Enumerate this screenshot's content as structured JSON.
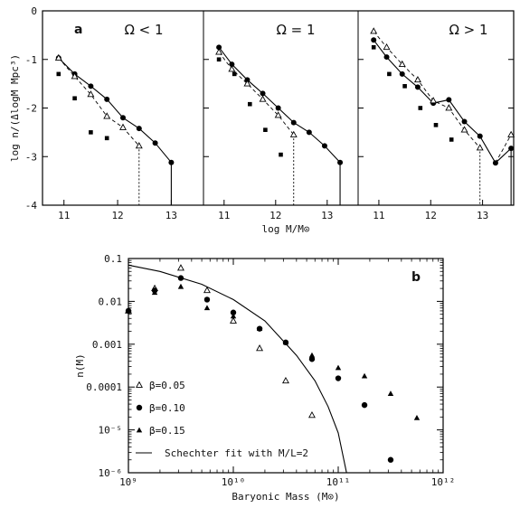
{
  "chart_data": [
    {
      "type": "line",
      "panel_letter": "a",
      "ylabel": "log n/(ΔlogM Mpc³)",
      "xlabel": "log M/M⊙",
      "ylim": [
        -4,
        0
      ],
      "y_ticks": [
        "0",
        "-1",
        "-2",
        "-3",
        "-4"
      ],
      "panels": [
        {
          "label": "Ω < 1",
          "xlim": [
            10.6,
            13.6
          ],
          "x_ticks": [
            "11",
            "12",
            "13"
          ],
          "series": [
            {
              "style": "solid-circles",
              "x": [
                10.9,
                11.2,
                11.5,
                11.8,
                12.1,
                12.4,
                12.7,
                13.0
              ],
              "y": [
                -0.97,
                -1.3,
                -1.55,
                -1.82,
                -2.2,
                -2.42,
                -2.72,
                -3.12
              ]
            },
            {
              "style": "dashed-triangles",
              "x": [
                10.9,
                11.2,
                11.5,
                11.8,
                12.1,
                12.4
              ],
              "y": [
                -0.97,
                -1.35,
                -1.72,
                -2.17,
                -2.4,
                -2.78
              ]
            },
            {
              "style": "squares",
              "x": [
                10.9,
                11.2,
                11.5,
                11.8
              ],
              "y": [
                -1.3,
                -1.8,
                -2.5,
                -2.62
              ]
            }
          ]
        },
        {
          "label": "Ω = 1",
          "xlim": [
            10.6,
            13.6
          ],
          "x_ticks": [
            "11",
            "12",
            "13"
          ],
          "series": [
            {
              "style": "solid-circles",
              "x": [
                10.9,
                11.15,
                11.45,
                11.75,
                12.05,
                12.35,
                12.65,
                12.95,
                13.25
              ],
              "y": [
                -0.75,
                -1.1,
                -1.42,
                -1.7,
                -2.0,
                -2.3,
                -2.5,
                -2.78,
                -3.12
              ]
            },
            {
              "style": "dashed-triangles",
              "x": [
                10.9,
                11.15,
                11.45,
                11.75,
                12.05,
                12.35
              ],
              "y": [
                -0.85,
                -1.2,
                -1.5,
                -1.82,
                -2.15,
                -2.55
              ]
            },
            {
              "style": "squares",
              "x": [
                10.9,
                11.2,
                11.5,
                11.8,
                12.1
              ],
              "y": [
                -1.0,
                -1.3,
                -1.92,
                -2.45,
                -2.96
              ]
            }
          ]
        },
        {
          "label": "Ω > 1",
          "xlim": [
            10.6,
            13.6
          ],
          "x_ticks": [
            "11",
            "12",
            "13"
          ],
          "series": [
            {
              "style": "solid-circles",
              "x": [
                10.9,
                11.15,
                11.45,
                11.75,
                12.05,
                12.35,
                12.65,
                12.95,
                13.25,
                13.55
              ],
              "y": [
                -0.6,
                -0.95,
                -1.3,
                -1.57,
                -1.9,
                -1.83,
                -2.28,
                -2.58,
                -3.13,
                -2.83
              ]
            },
            {
              "style": "dashed-triangles",
              "x": [
                10.9,
                11.15,
                11.45,
                11.75,
                12.05,
                12.35,
                12.65,
                12.95
              ],
              "y": [
                -0.42,
                -0.75,
                -1.1,
                -1.42,
                -1.85,
                -2.0,
                -2.45,
                -2.82
              ]
            },
            {
              "style": "triangle-tail",
              "x": [
                13.25,
                13.55
              ],
              "y": [
                -3.13,
                -2.55
              ]
            },
            {
              "style": "squares",
              "x": [
                10.9,
                11.2,
                11.5,
                11.8,
                12.1,
                12.4
              ],
              "y": [
                -0.75,
                -1.3,
                -1.55,
                -2.0,
                -2.35,
                -2.65
              ]
            }
          ]
        }
      ]
    },
    {
      "type": "scatter",
      "panel_letter": "b",
      "title": "",
      "xlabel": "Baryonic Mass (M⊙)",
      "ylabel": "n(M)",
      "x_scale": "log",
      "y_scale": "log",
      "xlim": [
        1000000000.0,
        1000000000000.0
      ],
      "ylim": [
        1e-06,
        0.1
      ],
      "x_ticks": [
        "10⁹",
        "10¹⁰",
        "10¹¹",
        "10¹²"
      ],
      "y_ticks": [
        "0.1",
        "0.01",
        "0.001",
        "0.0001",
        "10⁻⁵",
        "10⁻⁶"
      ],
      "series": [
        {
          "name": "β=0.05",
          "marker": "open-triangle",
          "x": [
            1000000000.0,
            1780000000.0,
            3160000000.0,
            5620000000.0,
            10000000000.0,
            17800000000.0,
            31600000000.0,
            56200000000.0
          ],
          "y": [
            0.006,
            0.02,
            0.06,
            0.018,
            0.0035,
            0.0008,
            0.00014,
            2.2e-05
          ]
        },
        {
          "name": "β=0.10",
          "marker": "filled-circle",
          "x": [
            1000000000.0,
            1780000000.0,
            3160000000.0,
            5620000000.0,
            10000000000.0,
            17800000000.0,
            31600000000.0,
            56200000000.0,
            100000000000.0,
            178000000000.0,
            316000000000.0
          ],
          "y": [
            0.006,
            0.018,
            0.035,
            0.011,
            0.0055,
            0.0023,
            0.0011,
            0.00045,
            0.00016,
            3.8e-05,
            2e-06
          ]
        },
        {
          "name": "β=0.15",
          "marker": "filled-triangle",
          "x": [
            1000000000.0,
            1780000000.0,
            3160000000.0,
            5620000000.0,
            10000000000.0,
            17800000000.0,
            31600000000.0,
            56200000000.0,
            100000000000.0,
            178000000000.0,
            316000000000.0,
            562000000000.0
          ],
          "y": [
            0.006,
            0.016,
            0.022,
            0.007,
            0.0045,
            0.0023,
            0.0011,
            0.00055,
            0.00028,
            0.00018,
            7e-05,
            1.9e-05
          ]
        },
        {
          "name": "Schechter fit with M/L=2",
          "marker": "line",
          "x": [
            1000000000.0,
            2000000000.0,
            5000000000.0,
            10000000000.0,
            20000000000.0,
            40000000000.0,
            60000000000.0,
            80000000000.0,
            100000000000.0,
            120000000000.0
          ],
          "y": [
            0.07,
            0.05,
            0.025,
            0.011,
            0.0035,
            0.00055,
            0.00014,
            3.5e-05,
            8.5e-06,
            1e-06
          ]
        }
      ],
      "legend_position": "bottom-left"
    }
  ]
}
